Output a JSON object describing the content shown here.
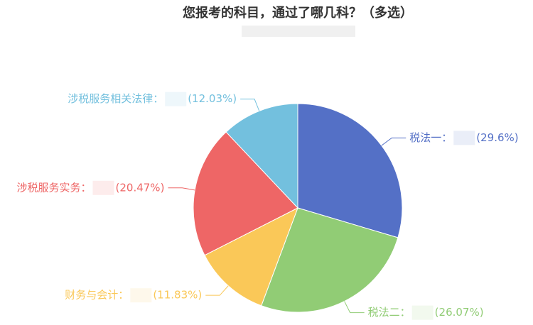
{
  "chart_data": {
    "type": "pie",
    "title": "您报考的科目，通过了哪几科？（多选）",
    "categories": [
      "税法一：",
      "税法二：",
      "财务与会计：",
      "涉税服务实务：",
      "涉税服务相关法律："
    ],
    "values": [
      29.6,
      26.07,
      11.83,
      20.47,
      12.03
    ],
    "value_labels": [
      "(29.6%)",
      "(26.07%)",
      "(11.83%)",
      "(20.47%)",
      "(12.03%)"
    ],
    "colors": [
      "#5470c6",
      "#91cc75",
      "#fac858",
      "#ee6666",
      "#73c0de"
    ]
  }
}
